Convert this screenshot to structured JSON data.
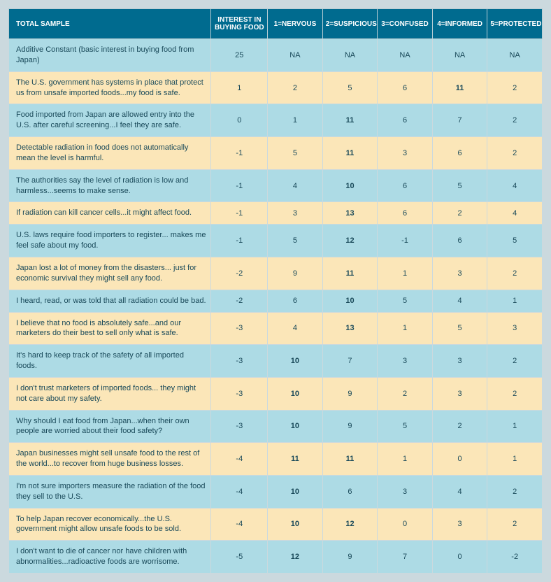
{
  "colors": {
    "page_bg": "#cbd9de",
    "header_bg": "#006b8f",
    "header_text": "#ffffff",
    "band_blue": "#addbe5",
    "band_yellow": "#fbe6b8",
    "text": "#1a4a5a",
    "border": "#cbd9de"
  },
  "columns": [
    "TOTAL SAMPLE",
    "INTEREST IN BUYING FOOD",
    "1=NERVOUS",
    "2=SUSPICIOUS",
    "3=CONFUSED",
    "4=INFORMED",
    "5=PROTECTED"
  ],
  "rows": [
    {
      "band": "blue",
      "label": "Additive Constant (basic interest in buying food from Japan)",
      "cells": [
        {
          "v": "25",
          "b": false
        },
        {
          "v": "NA",
          "b": false
        },
        {
          "v": "NA",
          "b": false
        },
        {
          "v": "NA",
          "b": false
        },
        {
          "v": "NA",
          "b": false
        },
        {
          "v": "NA",
          "b": false
        }
      ]
    },
    {
      "band": "yellow",
      "label": "The U.S. government has systems in place that protect us from unsafe imported foods...my food is safe.",
      "cells": [
        {
          "v": "1",
          "b": false
        },
        {
          "v": "2",
          "b": false
        },
        {
          "v": "5",
          "b": false
        },
        {
          "v": "6",
          "b": false
        },
        {
          "v": "11",
          "b": true
        },
        {
          "v": "2",
          "b": false
        }
      ]
    },
    {
      "band": "blue",
      "label": "Food imported from Japan are allowed entry into the U.S. after careful screening...I feel they are safe.",
      "cells": [
        {
          "v": "0",
          "b": false
        },
        {
          "v": "1",
          "b": false
        },
        {
          "v": "11",
          "b": true
        },
        {
          "v": "6",
          "b": false
        },
        {
          "v": "7",
          "b": false
        },
        {
          "v": "2",
          "b": false
        }
      ]
    },
    {
      "band": "yellow",
      "label": "Detectable radiation in food does not automatically mean the level is harmful.",
      "cells": [
        {
          "v": "-1",
          "b": false
        },
        {
          "v": "5",
          "b": false
        },
        {
          "v": "11",
          "b": true
        },
        {
          "v": "3",
          "b": false
        },
        {
          "v": "6",
          "b": false
        },
        {
          "v": "2",
          "b": false
        }
      ]
    },
    {
      "band": "blue",
      "label": "The authorities say the level of radiation is low and harmless...seems to make sense.",
      "cells": [
        {
          "v": "-1",
          "b": false
        },
        {
          "v": "4",
          "b": false
        },
        {
          "v": "10",
          "b": true
        },
        {
          "v": "6",
          "b": false
        },
        {
          "v": "5",
          "b": false
        },
        {
          "v": "4",
          "b": false
        }
      ]
    },
    {
      "band": "yellow",
      "label": "If radiation can kill cancer cells...it might affect food.",
      "cells": [
        {
          "v": "-1",
          "b": false
        },
        {
          "v": "3",
          "b": false
        },
        {
          "v": "13",
          "b": true
        },
        {
          "v": "6",
          "b": false
        },
        {
          "v": "2",
          "b": false
        },
        {
          "v": "4",
          "b": false
        }
      ]
    },
    {
      "band": "blue",
      "label": "U.S. laws require food importers to register... makes me feel safe about my food.",
      "cells": [
        {
          "v": "-1",
          "b": false
        },
        {
          "v": "5",
          "b": false
        },
        {
          "v": "12",
          "b": true
        },
        {
          "v": "-1",
          "b": false
        },
        {
          "v": "6",
          "b": false
        },
        {
          "v": "5",
          "b": false
        }
      ]
    },
    {
      "band": "yellow",
      "label": "Japan lost a lot of money from the disasters... just for economic survival they might sell any food.",
      "cells": [
        {
          "v": "-2",
          "b": false
        },
        {
          "v": "9",
          "b": false
        },
        {
          "v": "11",
          "b": true
        },
        {
          "v": "1",
          "b": false
        },
        {
          "v": "3",
          "b": false
        },
        {
          "v": "2",
          "b": false
        }
      ]
    },
    {
      "band": "blue",
      "label": "I heard, read, or was told that all radiation could be bad.",
      "cells": [
        {
          "v": "-2",
          "b": false
        },
        {
          "v": "6",
          "b": false
        },
        {
          "v": "10",
          "b": true
        },
        {
          "v": "5",
          "b": false
        },
        {
          "v": "4",
          "b": false
        },
        {
          "v": "1",
          "b": false
        }
      ]
    },
    {
      "band": "yellow",
      "label": "I believe that no food is absolutely safe...and our marketers do their best to sell only what is safe.",
      "cells": [
        {
          "v": "-3",
          "b": false
        },
        {
          "v": "4",
          "b": false
        },
        {
          "v": "13",
          "b": true
        },
        {
          "v": "1",
          "b": false
        },
        {
          "v": "5",
          "b": false
        },
        {
          "v": "3",
          "b": false
        }
      ]
    },
    {
      "band": "blue",
      "label": "It's hard to keep track of the safety of all imported foods.",
      "cells": [
        {
          "v": "-3",
          "b": false
        },
        {
          "v": "10",
          "b": true
        },
        {
          "v": "7",
          "b": false
        },
        {
          "v": "3",
          "b": false
        },
        {
          "v": "3",
          "b": false
        },
        {
          "v": "2",
          "b": false
        }
      ]
    },
    {
      "band": "yellow",
      "label": "I don't trust marketers of imported foods... they might not care about my safety.",
      "cells": [
        {
          "v": "-3",
          "b": false
        },
        {
          "v": "10",
          "b": true
        },
        {
          "v": "9",
          "b": false
        },
        {
          "v": "2",
          "b": false
        },
        {
          "v": "3",
          "b": false
        },
        {
          "v": "2",
          "b": false
        }
      ]
    },
    {
      "band": "blue",
      "label": "Why should I eat food from Japan...when their own people are worried about their food safety?",
      "cells": [
        {
          "v": "-3",
          "b": false
        },
        {
          "v": "10",
          "b": true
        },
        {
          "v": "9",
          "b": false
        },
        {
          "v": "5",
          "b": false
        },
        {
          "v": "2",
          "b": false
        },
        {
          "v": "1",
          "b": false
        }
      ]
    },
    {
      "band": "yellow",
      "label": "Japan businesses might sell unsafe food to the rest of the world...to recover from huge business losses.",
      "cells": [
        {
          "v": "-4",
          "b": false
        },
        {
          "v": "11",
          "b": true
        },
        {
          "v": "11",
          "b": true
        },
        {
          "v": "1",
          "b": false
        },
        {
          "v": "0",
          "b": false
        },
        {
          "v": "1",
          "b": false
        }
      ]
    },
    {
      "band": "blue",
      "label": "I'm not sure importers measure the radiation of the food they sell to the U.S.",
      "cells": [
        {
          "v": "-4",
          "b": false
        },
        {
          "v": "10",
          "b": true
        },
        {
          "v": "6",
          "b": false
        },
        {
          "v": "3",
          "b": false
        },
        {
          "v": "4",
          "b": false
        },
        {
          "v": "2",
          "b": false
        }
      ]
    },
    {
      "band": "yellow",
      "label": "To help Japan recover economically...the U.S. government might allow unsafe foods to be sold.",
      "cells": [
        {
          "v": "-4",
          "b": false
        },
        {
          "v": "10",
          "b": true
        },
        {
          "v": "12",
          "b": true
        },
        {
          "v": "0",
          "b": false
        },
        {
          "v": "3",
          "b": false
        },
        {
          "v": "2",
          "b": false
        }
      ]
    },
    {
      "band": "blue",
      "label": "I don't want to die of cancer nor have children with abnormalities...radioactive foods are worrisome.",
      "cells": [
        {
          "v": "-5",
          "b": false
        },
        {
          "v": "12",
          "b": true
        },
        {
          "v": "9",
          "b": false
        },
        {
          "v": "7",
          "b": false
        },
        {
          "v": "0",
          "b": false
        },
        {
          "v": "-2",
          "b": false
        }
      ]
    }
  ]
}
